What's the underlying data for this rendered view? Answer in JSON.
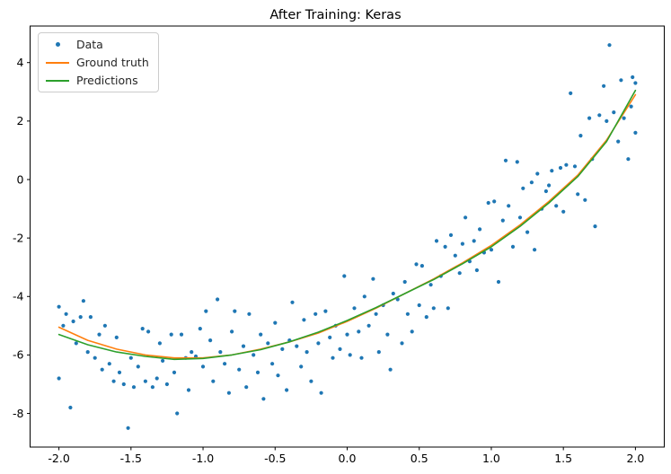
{
  "chart_data": {
    "type": "scatter",
    "title": "After Training: Keras",
    "xlabel": "",
    "ylabel": "",
    "xlim": [
      -2.2,
      2.2
    ],
    "ylim": [
      -9.15,
      5.25
    ],
    "xticks": [
      -2.0,
      -1.5,
      -1.0,
      -0.5,
      0.0,
      0.5,
      1.0,
      1.5,
      2.0
    ],
    "xtick_labels": [
      "-2.0",
      "-1.5",
      "-1.0",
      "-0.5",
      "0.0",
      "0.5",
      "1.0",
      "1.5",
      "2.0"
    ],
    "yticks": [
      -8,
      -6,
      -4,
      -2,
      0,
      2,
      4
    ],
    "ytick_labels": [
      "-8",
      "-6",
      "-4",
      "-2",
      "0",
      "2",
      "4"
    ],
    "grid": false,
    "legend_position": "upper left",
    "legend": [
      {
        "label": "Data",
        "marker": "dot",
        "color": "#1f77b4"
      },
      {
        "label": "Ground truth",
        "marker": "line",
        "color": "#ff7f0e"
      },
      {
        "label": "Predictions",
        "marker": "line",
        "color": "#2ca02c"
      }
    ],
    "scatter": {
      "name": "Data",
      "color": "#1f77b4",
      "points": [
        [
          -2.0,
          -4.35
        ],
        [
          -2.0,
          -6.8
        ],
        [
          -1.97,
          -5.0
        ],
        [
          -1.95,
          -4.6
        ],
        [
          -1.92,
          -7.8
        ],
        [
          -1.9,
          -4.85
        ],
        [
          -1.88,
          -5.6
        ],
        [
          -1.85,
          -4.7
        ],
        [
          -1.83,
          -4.15
        ],
        [
          -1.8,
          -5.9
        ],
        [
          -1.78,
          -4.7
        ],
        [
          -1.75,
          -6.1
        ],
        [
          -1.72,
          -5.3
        ],
        [
          -1.7,
          -6.5
        ],
        [
          -1.68,
          -5.0
        ],
        [
          -1.65,
          -6.3
        ],
        [
          -1.62,
          -6.9
        ],
        [
          -1.6,
          -5.4
        ],
        [
          -1.58,
          -6.6
        ],
        [
          -1.55,
          -7.0
        ],
        [
          -1.52,
          -8.5
        ],
        [
          -1.5,
          -6.1
        ],
        [
          -1.48,
          -7.1
        ],
        [
          -1.45,
          -6.4
        ],
        [
          -1.42,
          -5.1
        ],
        [
          -1.4,
          -6.9
        ],
        [
          -1.38,
          -5.2
        ],
        [
          -1.35,
          -7.1
        ],
        [
          -1.32,
          -6.8
        ],
        [
          -1.3,
          -5.6
        ],
        [
          -1.28,
          -6.2
        ],
        [
          -1.25,
          -7.0
        ],
        [
          -1.22,
          -5.3
        ],
        [
          -1.2,
          -6.6
        ],
        [
          -1.18,
          -8.0
        ],
        [
          -1.15,
          -5.3
        ],
        [
          -1.12,
          -6.1
        ],
        [
          -1.1,
          -7.2
        ],
        [
          -1.08,
          -5.9
        ],
        [
          -1.05,
          -6.05
        ],
        [
          -1.02,
          -5.1
        ],
        [
          -1.0,
          -6.4
        ],
        [
          -0.98,
          -4.5
        ],
        [
          -0.95,
          -5.5
        ],
        [
          -0.93,
          -6.9
        ],
        [
          -0.9,
          -4.1
        ],
        [
          -0.88,
          -5.9
        ],
        [
          -0.85,
          -6.3
        ],
        [
          -0.82,
          -7.3
        ],
        [
          -0.8,
          -5.2
        ],
        [
          -0.78,
          -4.5
        ],
        [
          -0.75,
          -6.5
        ],
        [
          -0.72,
          -5.7
        ],
        [
          -0.7,
          -7.1
        ],
        [
          -0.68,
          -4.6
        ],
        [
          -0.65,
          -6.0
        ],
        [
          -0.62,
          -6.6
        ],
        [
          -0.6,
          -5.3
        ],
        [
          -0.58,
          -7.5
        ],
        [
          -0.55,
          -5.6
        ],
        [
          -0.52,
          -6.3
        ],
        [
          -0.5,
          -4.9
        ],
        [
          -0.48,
          -6.7
        ],
        [
          -0.45,
          -5.8
        ],
        [
          -0.42,
          -7.2
        ],
        [
          -0.4,
          -5.5
        ],
        [
          -0.38,
          -4.2
        ],
        [
          -0.35,
          -5.7
        ],
        [
          -0.32,
          -6.4
        ],
        [
          -0.3,
          -4.8
        ],
        [
          -0.28,
          -5.9
        ],
        [
          -0.25,
          -6.9
        ],
        [
          -0.22,
          -4.6
        ],
        [
          -0.2,
          -5.6
        ],
        [
          -0.18,
          -7.3
        ],
        [
          -0.15,
          -4.5
        ],
        [
          -0.12,
          -5.4
        ],
        [
          -0.1,
          -6.1
        ],
        [
          -0.08,
          -5.0
        ],
        [
          -0.05,
          -5.8
        ],
        [
          -0.02,
          -3.3
        ],
        [
          0.0,
          -5.3
        ],
        [
          0.02,
          -6.0
        ],
        [
          0.05,
          -4.4
        ],
        [
          0.08,
          -5.2
        ],
        [
          0.1,
          -6.1
        ],
        [
          0.12,
          -4.0
        ],
        [
          0.15,
          -5.0
        ],
        [
          0.18,
          -3.4
        ],
        [
          0.2,
          -4.6
        ],
        [
          0.22,
          -5.9
        ],
        [
          0.25,
          -4.3
        ],
        [
          0.28,
          -5.3
        ],
        [
          0.3,
          -6.5
        ],
        [
          0.32,
          -3.9
        ],
        [
          0.35,
          -4.1
        ],
        [
          0.38,
          -5.6
        ],
        [
          0.4,
          -3.5
        ],
        [
          0.42,
          -4.6
        ],
        [
          0.45,
          -5.2
        ],
        [
          0.48,
          -2.9
        ],
        [
          0.5,
          -4.3
        ],
        [
          0.52,
          -2.95
        ],
        [
          0.55,
          -4.7
        ],
        [
          0.58,
          -3.6
        ],
        [
          0.6,
          -4.4
        ],
        [
          0.62,
          -2.1
        ],
        [
          0.65,
          -3.3
        ],
        [
          0.68,
          -2.3
        ],
        [
          0.7,
          -4.4
        ],
        [
          0.72,
          -1.9
        ],
        [
          0.75,
          -2.6
        ],
        [
          0.78,
          -3.2
        ],
        [
          0.8,
          -2.2
        ],
        [
          0.82,
          -1.3
        ],
        [
          0.85,
          -2.8
        ],
        [
          0.88,
          -2.1
        ],
        [
          0.9,
          -3.1
        ],
        [
          0.92,
          -1.7
        ],
        [
          0.95,
          -2.5
        ],
        [
          0.98,
          -0.8
        ],
        [
          1.0,
          -2.4
        ],
        [
          1.02,
          -0.75
        ],
        [
          1.05,
          -3.5
        ],
        [
          1.08,
          -1.4
        ],
        [
          1.1,
          0.65
        ],
        [
          1.12,
          -0.9
        ],
        [
          1.15,
          -2.3
        ],
        [
          1.18,
          0.6
        ],
        [
          1.2,
          -1.3
        ],
        [
          1.22,
          -0.3
        ],
        [
          1.25,
          -1.8
        ],
        [
          1.28,
          -0.1
        ],
        [
          1.3,
          -2.4
        ],
        [
          1.32,
          0.2
        ],
        [
          1.35,
          -1.0
        ],
        [
          1.38,
          -0.4
        ],
        [
          1.4,
          -0.2
        ],
        [
          1.42,
          0.3
        ],
        [
          1.45,
          -0.9
        ],
        [
          1.48,
          0.4
        ],
        [
          1.5,
          -1.1
        ],
        [
          1.52,
          0.5
        ],
        [
          1.55,
          2.95
        ],
        [
          1.58,
          0.45
        ],
        [
          1.6,
          -0.5
        ],
        [
          1.62,
          1.5
        ],
        [
          1.65,
          -0.7
        ],
        [
          1.68,
          2.1
        ],
        [
          1.7,
          0.7
        ],
        [
          1.72,
          -1.6
        ],
        [
          1.75,
          2.2
        ],
        [
          1.78,
          3.2
        ],
        [
          1.8,
          2.0
        ],
        [
          1.82,
          4.6
        ],
        [
          1.85,
          2.3
        ],
        [
          1.88,
          1.3
        ],
        [
          1.9,
          3.4
        ],
        [
          1.92,
          2.1
        ],
        [
          1.95,
          0.7
        ],
        [
          1.97,
          2.5
        ],
        [
          1.98,
          3.5
        ],
        [
          2.0,
          3.3
        ],
        [
          2.0,
          1.6
        ]
      ]
    },
    "series": [
      {
        "name": "Ground truth",
        "color": "#ff7f0e",
        "x": [
          -2.0,
          -1.8,
          -1.6,
          -1.4,
          -1.2,
          -1.0,
          -0.8,
          -0.6,
          -0.4,
          -0.2,
          0.0,
          0.2,
          0.4,
          0.6,
          0.8,
          1.0,
          1.2,
          1.4,
          1.6,
          1.8,
          2.0
        ],
        "y": [
          -5.05,
          -5.5,
          -5.8,
          -6.0,
          -6.1,
          -6.1,
          -6.0,
          -5.8,
          -5.55,
          -5.25,
          -4.85,
          -4.4,
          -3.9,
          -3.4,
          -2.85,
          -2.25,
          -1.55,
          -0.75,
          0.15,
          1.35,
          2.9
        ]
      },
      {
        "name": "Predictions",
        "color": "#2ca02c",
        "x": [
          -2.0,
          -1.8,
          -1.6,
          -1.4,
          -1.2,
          -1.0,
          -0.8,
          -0.6,
          -0.4,
          -0.2,
          0.0,
          0.2,
          0.4,
          0.6,
          0.8,
          1.0,
          1.2,
          1.4,
          1.6,
          1.8,
          2.0
        ],
        "y": [
          -5.3,
          -5.65,
          -5.9,
          -6.05,
          -6.15,
          -6.12,
          -6.0,
          -5.82,
          -5.55,
          -5.22,
          -4.82,
          -4.38,
          -3.9,
          -3.42,
          -2.88,
          -2.3,
          -1.6,
          -0.8,
          0.1,
          1.3,
          3.05
        ]
      }
    ]
  }
}
